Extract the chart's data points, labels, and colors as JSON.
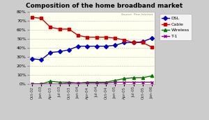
{
  "title": "Composition of the home broadband market",
  "source_text": "Source: Pew Internet",
  "x_labels": [
    "Oct-02",
    "Jan-03",
    "Apr-03",
    "Jul-03",
    "Oct-03",
    "Jan-04",
    "Apr-04",
    "Jul-04",
    "Oct-04",
    "Jan-05",
    "Apr-05",
    "Jul-05",
    "Oct-05",
    "Jan-06"
  ],
  "dsl": [
    28,
    27,
    35,
    36,
    38,
    42,
    42,
    42,
    42,
    43,
    46,
    46,
    47,
    51
  ],
  "cable": [
    74,
    73,
    63,
    61,
    61,
    54,
    52,
    52,
    52,
    51,
    49,
    46,
    46,
    41
  ],
  "wireless": [
    0,
    0,
    3,
    2,
    2,
    1,
    2,
    2,
    2,
    4,
    6,
    7,
    7,
    9
  ],
  "t1": [
    0,
    0,
    0,
    0,
    1,
    1,
    1,
    1,
    1,
    2,
    2,
    2,
    2,
    2
  ],
  "dsl_color": "#0000bb",
  "cable_color": "#cc0000",
  "wireless_color": "#007700",
  "t1_color": "#880088",
  "bg_plot": "#fffff0",
  "bg_fig": "#cccccc",
  "title_bg": "#ffffff",
  "ylim": [
    0,
    80
  ],
  "yticks": [
    0,
    10,
    20,
    30,
    40,
    50,
    60,
    70,
    80
  ]
}
